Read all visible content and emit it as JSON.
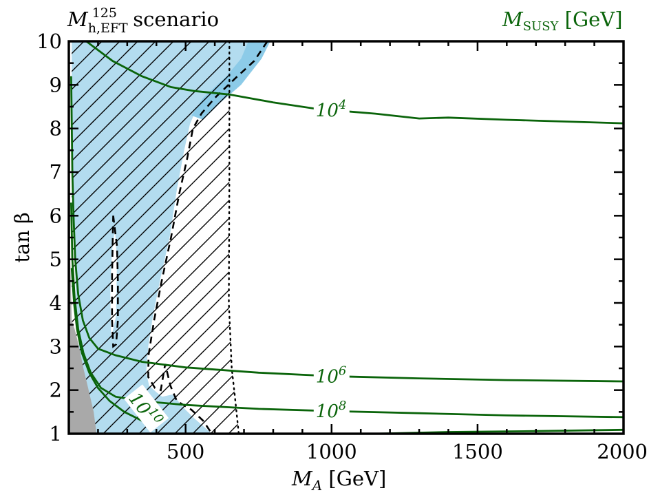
{
  "chart_data": {
    "type": "contour",
    "title": "M",
    "title_sub": "h,EFT",
    "title_sup": "125",
    "title_rest": " scenario",
    "legend_title": "M",
    "legend_sub": "SUSY",
    "legend_rest": " [GeV]",
    "xlabel_var": "M",
    "xlabel_sub": "A",
    "xlabel_unit": " [GeV]",
    "ylabel": "tan β",
    "xlim": [
      100,
      2000
    ],
    "ylim": [
      1,
      10
    ],
    "xticks": [
      "500",
      "1000",
      "1500",
      "2000"
    ],
    "yticks": [
      "1",
      "2",
      "3",
      "4",
      "5",
      "6",
      "7",
      "8",
      "9",
      "10"
    ],
    "colors": {
      "contour": "#0a640a",
      "excluded_fill": "#b3dcef",
      "excluded_edge": "#8ccbe8",
      "unphysical": "#a9a9a9",
      "hatch": "#000000"
    },
    "msusy_contours": [
      {
        "label": "10",
        "exp": "4",
        "points": [
          [
            130,
            10.15
          ],
          [
            170,
            9.95
          ],
          [
            250,
            9.55
          ],
          [
            350,
            9.2
          ],
          [
            450,
            8.95
          ],
          [
            530,
            8.86
          ],
          [
            650,
            8.78
          ],
          [
            800,
            8.6
          ],
          [
            950,
            8.45
          ],
          [
            1150,
            8.34
          ],
          [
            1300,
            8.23
          ],
          [
            1400,
            8.25
          ],
          [
            1600,
            8.2
          ],
          [
            2000,
            8.12
          ]
        ]
      },
      {
        "label": "10",
        "exp": "6",
        "points": [
          [
            108,
            9.2
          ],
          [
            112,
            7
          ],
          [
            116,
            6
          ],
          [
            122,
            5
          ],
          [
            132,
            4.2
          ],
          [
            148,
            3.6
          ],
          [
            170,
            3.2
          ],
          [
            200,
            2.95
          ],
          [
            260,
            2.8
          ],
          [
            350,
            2.65
          ],
          [
            500,
            2.52
          ],
          [
            750,
            2.4
          ],
          [
            1000,
            2.32
          ],
          [
            1300,
            2.27
          ],
          [
            1600,
            2.23
          ],
          [
            2000,
            2.2
          ]
        ]
      },
      {
        "label": "10",
        "exp": "8",
        "points": [
          [
            108,
            6.3
          ],
          [
            112,
            5
          ],
          [
            120,
            4.1
          ],
          [
            132,
            3.4
          ],
          [
            150,
            2.85
          ],
          [
            175,
            2.4
          ],
          [
            210,
            2.05
          ],
          [
            260,
            1.85
          ],
          [
            350,
            1.75
          ],
          [
            500,
            1.66
          ],
          [
            750,
            1.57
          ],
          [
            1000,
            1.52
          ],
          [
            1300,
            1.47
          ],
          [
            1600,
            1.42
          ],
          [
            2000,
            1.38
          ]
        ]
      },
      {
        "label": "10",
        "exp": "10",
        "points": [
          [
            110,
            4.8
          ],
          [
            118,
            4
          ],
          [
            128,
            3.4
          ],
          [
            145,
            2.85
          ],
          [
            170,
            2.4
          ],
          [
            200,
            2.05
          ],
          [
            240,
            1.75
          ],
          [
            290,
            1.5
          ],
          [
            350,
            1.3
          ],
          [
            400,
            1.15
          ]
        ]
      },
      {
        "label": "",
        "exp": "",
        "points": [
          [
            1150,
            1.0
          ],
          [
            1400,
            1.04
          ],
          [
            1700,
            1.06
          ],
          [
            2000,
            1.09
          ]
        ]
      }
    ],
    "contour_labels": [
      {
        "text": "10",
        "exp": "4",
        "x": 1000,
        "y": 8.42
      },
      {
        "text": "10",
        "exp": "6",
        "x": 1000,
        "y": 2.32
      },
      {
        "text": "10",
        "exp": "8",
        "x": 1000,
        "y": 1.52
      },
      {
        "text": "10",
        "exp": "10",
        "x": 360,
        "y": 1.55
      }
    ],
    "excluded_region": [
      [
        150,
        10
      ],
      [
        760,
        10
      ],
      [
        715,
        9.7
      ],
      [
        660,
        9.3
      ],
      [
        600,
        8.9
      ],
      [
        540,
        8.5
      ],
      [
        515,
        8.1
      ],
      [
        495,
        7.5
      ],
      [
        470,
        6.6
      ],
      [
        445,
        5.5
      ],
      [
        415,
        4.6
      ],
      [
        388,
        3.7
      ],
      [
        372,
        3.0
      ],
      [
        365,
        2.4
      ],
      [
        375,
        2.1
      ],
      [
        400,
        1.95
      ],
      [
        420,
        1.85
      ],
      [
        455,
        1.9
      ],
      [
        500,
        1.55
      ],
      [
        530,
        1.35
      ],
      [
        590,
        1.0
      ],
      [
        195,
        1.0
      ],
      [
        160,
        1.5
      ],
      [
        140,
        2.5
      ],
      [
        125,
        4
      ],
      [
        115,
        6
      ],
      [
        110,
        8
      ],
      [
        110,
        10
      ]
    ],
    "excluded_band": [
      [
        715,
        10
      ],
      [
        790,
        10
      ],
      [
        760,
        9.6
      ],
      [
        690,
        9.0
      ],
      [
        620,
        8.6
      ],
      [
        560,
        8.2
      ],
      [
        520,
        8.3
      ],
      [
        560,
        8.7
      ],
      [
        640,
        9.2
      ],
      [
        690,
        9.6
      ]
    ],
    "allowed_island": [
      [
        245,
        3.2
      ],
      [
        262,
        3.7
      ],
      [
        265,
        5.0
      ],
      [
        258,
        5.7
      ],
      [
        248,
        5.2
      ],
      [
        242,
        4.3
      ]
    ],
    "excluded_boundary": [
      [
        780,
        10
      ],
      [
        735,
        9.55
      ],
      [
        670,
        9.15
      ],
      [
        600,
        8.7
      ],
      [
        555,
        8.35
      ],
      [
        525,
        8.0
      ],
      [
        505,
        7.3
      ],
      [
        478,
        6.5
      ],
      [
        450,
        5.5
      ],
      [
        418,
        4.5
      ],
      [
        392,
        3.6
      ],
      [
        373,
        2.8
      ],
      [
        372,
        2.3
      ],
      [
        395,
        2.05
      ],
      [
        415,
        2.0
      ],
      [
        430,
        2.6
      ],
      [
        448,
        2.1
      ],
      [
        470,
        1.75
      ],
      [
        520,
        1.55
      ],
      [
        560,
        1.3
      ],
      [
        590,
        1.0
      ]
    ],
    "island_boundary": [
      [
        252,
        6.0
      ],
      [
        265,
        5.3
      ],
      [
        268,
        4.5
      ],
      [
        268,
        3.6
      ],
      [
        262,
        3.05
      ],
      [
        252,
        3.0
      ],
      [
        248,
        3.6
      ],
      [
        248,
        4.6
      ],
      [
        250,
        5.3
      ],
      [
        252,
        6.0
      ]
    ],
    "hatched_region": [
      [
        110,
        10
      ],
      [
        650,
        10
      ],
      [
        650,
        7.0
      ],
      [
        648,
        4.0
      ],
      [
        658,
        2.5
      ],
      [
        668,
        1.9
      ],
      [
        682,
        1.0
      ],
      [
        110,
        1.0
      ]
    ],
    "hatch_boundary": [
      [
        650,
        10
      ],
      [
        650,
        7.0
      ],
      [
        648,
        4.0
      ],
      [
        658,
        2.5
      ],
      [
        668,
        1.9
      ],
      [
        682,
        1.0
      ]
    ],
    "unphysical_region": [
      [
        100,
        1.0
      ],
      [
        195,
        1.0
      ],
      [
        185,
        1.5
      ],
      [
        168,
        2.0
      ],
      [
        150,
        2.5
      ],
      [
        135,
        3.0
      ],
      [
        120,
        3.4
      ],
      [
        110,
        3.6
      ],
      [
        105,
        5
      ],
      [
        103,
        8
      ],
      [
        100,
        10
      ]
    ]
  }
}
